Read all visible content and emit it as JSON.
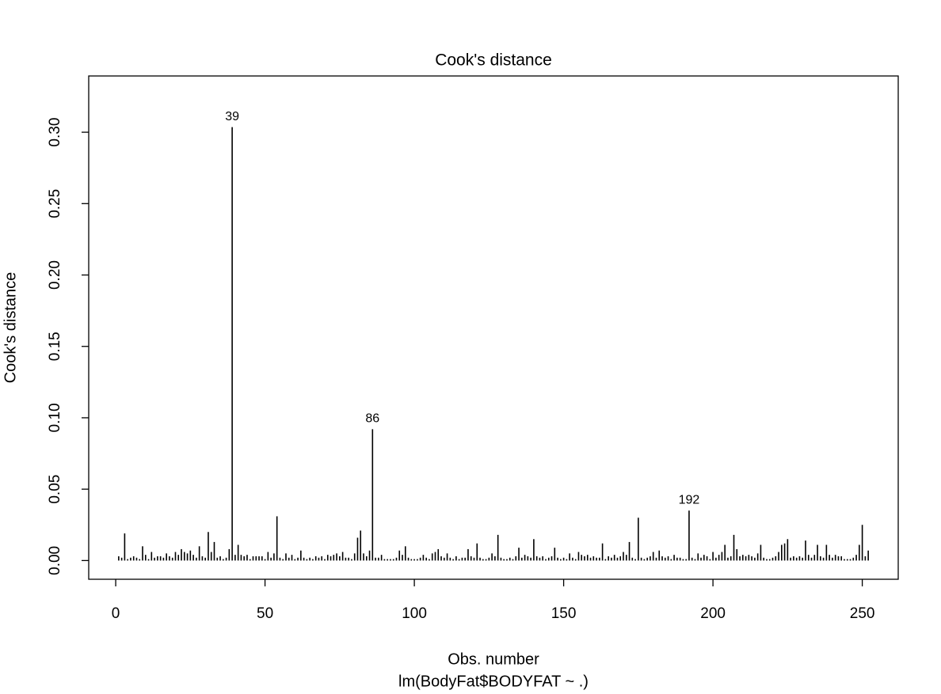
{
  "chart_data": {
    "type": "needle",
    "title": "Cook's distance",
    "xlabel": "Obs. number",
    "subtitle": "lm(BodyFat$BODYFAT ~ .)",
    "ylabel": "Cook's distance",
    "color": "#000000",
    "x": [
      1,
      2,
      3,
      4,
      5,
      6,
      7,
      8,
      9,
      10,
      11,
      12,
      13,
      14,
      15,
      16,
      17,
      18,
      19,
      20,
      21,
      22,
      23,
      24,
      25,
      26,
      27,
      28,
      29,
      30,
      31,
      32,
      33,
      34,
      35,
      36,
      37,
      38,
      39,
      40,
      41,
      42,
      43,
      44,
      45,
      46,
      47,
      48,
      49,
      50,
      51,
      52,
      53,
      54,
      55,
      56,
      57,
      58,
      59,
      60,
      61,
      62,
      63,
      64,
      65,
      66,
      67,
      68,
      69,
      70,
      71,
      72,
      73,
      74,
      75,
      76,
      77,
      78,
      79,
      80,
      81,
      82,
      83,
      84,
      85,
      86,
      87,
      88,
      89,
      90,
      91,
      92,
      93,
      94,
      95,
      96,
      97,
      98,
      99,
      100,
      101,
      102,
      103,
      104,
      105,
      106,
      107,
      108,
      109,
      110,
      111,
      112,
      113,
      114,
      115,
      116,
      117,
      118,
      119,
      120,
      121,
      122,
      123,
      124,
      125,
      126,
      127,
      128,
      129,
      130,
      131,
      132,
      133,
      134,
      135,
      136,
      137,
      138,
      139,
      140,
      141,
      142,
      143,
      144,
      145,
      146,
      147,
      148,
      149,
      150,
      151,
      152,
      153,
      154,
      155,
      156,
      157,
      158,
      159,
      160,
      161,
      162,
      163,
      164,
      165,
      166,
      167,
      168,
      169,
      170,
      171,
      172,
      173,
      174,
      175,
      176,
      177,
      178,
      179,
      180,
      181,
      182,
      183,
      184,
      185,
      186,
      187,
      188,
      189,
      190,
      191,
      192,
      193,
      194,
      195,
      196,
      197,
      198,
      199,
      200,
      201,
      202,
      203,
      204,
      205,
      206,
      207,
      208,
      209,
      210,
      211,
      212,
      213,
      214,
      215,
      216,
      217,
      218,
      219,
      220,
      221,
      222,
      223,
      224,
      225,
      226,
      227,
      228,
      229,
      230,
      231,
      232,
      233,
      234,
      235,
      236,
      237,
      238,
      239,
      240,
      241,
      242,
      243,
      244,
      245,
      246,
      247,
      248,
      249,
      250,
      251,
      252
    ],
    "values": [
      0.003,
      0.002,
      0.019,
      0.001,
      0.002,
      0.003,
      0.002,
      0.001,
      0.01,
      0.004,
      0.001,
      0.006,
      0.002,
      0.003,
      0.003,
      0.002,
      0.005,
      0.003,
      0.002,
      0.006,
      0.004,
      0.008,
      0.006,
      0.005,
      0.007,
      0.004,
      0.002,
      0.01,
      0.003,
      0.002,
      0.02,
      0.006,
      0.013,
      0.002,
      0.003,
      0.001,
      0.002,
      0.008,
      0.3036,
      0.004,
      0.011,
      0.004,
      0.003,
      0.004,
      0.001,
      0.003,
      0.003,
      0.003,
      0.003,
      0.001,
      0.006,
      0.002,
      0.005,
      0.031,
      0.002,
      0.001,
      0.005,
      0.002,
      0.004,
      0.001,
      0.002,
      0.007,
      0.002,
      0.001,
      0.002,
      0.001,
      0.003,
      0.002,
      0.003,
      0.001,
      0.004,
      0.003,
      0.004,
      0.005,
      0.003,
      0.006,
      0.002,
      0.002,
      0.001,
      0.005,
      0.016,
      0.021,
      0.005,
      0.003,
      0.007,
      0.092,
      0.002,
      0.002,
      0.004,
      0.001,
      0.001,
      0.001,
      0.001,
      0.002,
      0.007,
      0.004,
      0.01,
      0.002,
      0.001,
      0.001,
      0.001,
      0.002,
      0.004,
      0.002,
      0.001,
      0.005,
      0.006,
      0.008,
      0.003,
      0.002,
      0.005,
      0.002,
      0.001,
      0.003,
      0.001,
      0.002,
      0.002,
      0.008,
      0.003,
      0.002,
      0.012,
      0.002,
      0.001,
      0.001,
      0.002,
      0.005,
      0.003,
      0.018,
      0.002,
      0.001,
      0.001,
      0.002,
      0.001,
      0.003,
      0.009,
      0.002,
      0.004,
      0.003,
      0.002,
      0.015,
      0.003,
      0.002,
      0.003,
      0.001,
      0.002,
      0.003,
      0.009,
      0.002,
      0.001,
      0.002,
      0.001,
      0.005,
      0.002,
      0.001,
      0.006,
      0.004,
      0.003,
      0.004,
      0.002,
      0.003,
      0.002,
      0.002,
      0.012,
      0.001,
      0.003,
      0.002,
      0.004,
      0.002,
      0.003,
      0.006,
      0.004,
      0.013,
      0.002,
      0.001,
      0.03,
      0.002,
      0.001,
      0.002,
      0.003,
      0.006,
      0.002,
      0.007,
      0.003,
      0.002,
      0.003,
      0.001,
      0.004,
      0.002,
      0.002,
      0.001,
      0.001,
      0.035,
      0.002,
      0.001,
      0.005,
      0.002,
      0.004,
      0.003,
      0.001,
      0.006,
      0.002,
      0.004,
      0.006,
      0.011,
      0.002,
      0.003,
      0.018,
      0.008,
      0.003,
      0.004,
      0.003,
      0.004,
      0.003,
      0.002,
      0.005,
      0.011,
      0.002,
      0.001,
      0.001,
      0.002,
      0.003,
      0.006,
      0.011,
      0.012,
      0.015,
      0.002,
      0.003,
      0.002,
      0.003,
      0.002,
      0.014,
      0.004,
      0.002,
      0.004,
      0.011,
      0.003,
      0.002,
      0.011,
      0.004,
      0.002,
      0.004,
      0.003,
      0.003,
      0.001,
      0.001,
      0.001,
      0.002,
      0.004,
      0.011,
      0.025,
      0.003,
      0.007
    ],
    "annotations": [
      {
        "text": "39",
        "x": 39
      },
      {
        "text": "86",
        "x": 86
      },
      {
        "text": "192",
        "x": 192
      }
    ],
    "xlim": [
      -9.04,
      262.04
    ],
    "xticks": [
      0,
      50,
      100,
      150,
      200,
      250
    ],
    "ylim": [
      -0.0131,
      0.3394
    ],
    "yticks": [
      {
        "value": 0,
        "label": "0.00"
      },
      {
        "value": 0.05,
        "label": "0.05"
      },
      {
        "value": 0.1,
        "label": "0.10"
      },
      {
        "value": 0.15,
        "label": "0.15"
      },
      {
        "value": 0.2,
        "label": "0.20"
      },
      {
        "value": 0.25,
        "label": "0.25"
      },
      {
        "value": 0.3,
        "label": "0.30"
      }
    ]
  }
}
